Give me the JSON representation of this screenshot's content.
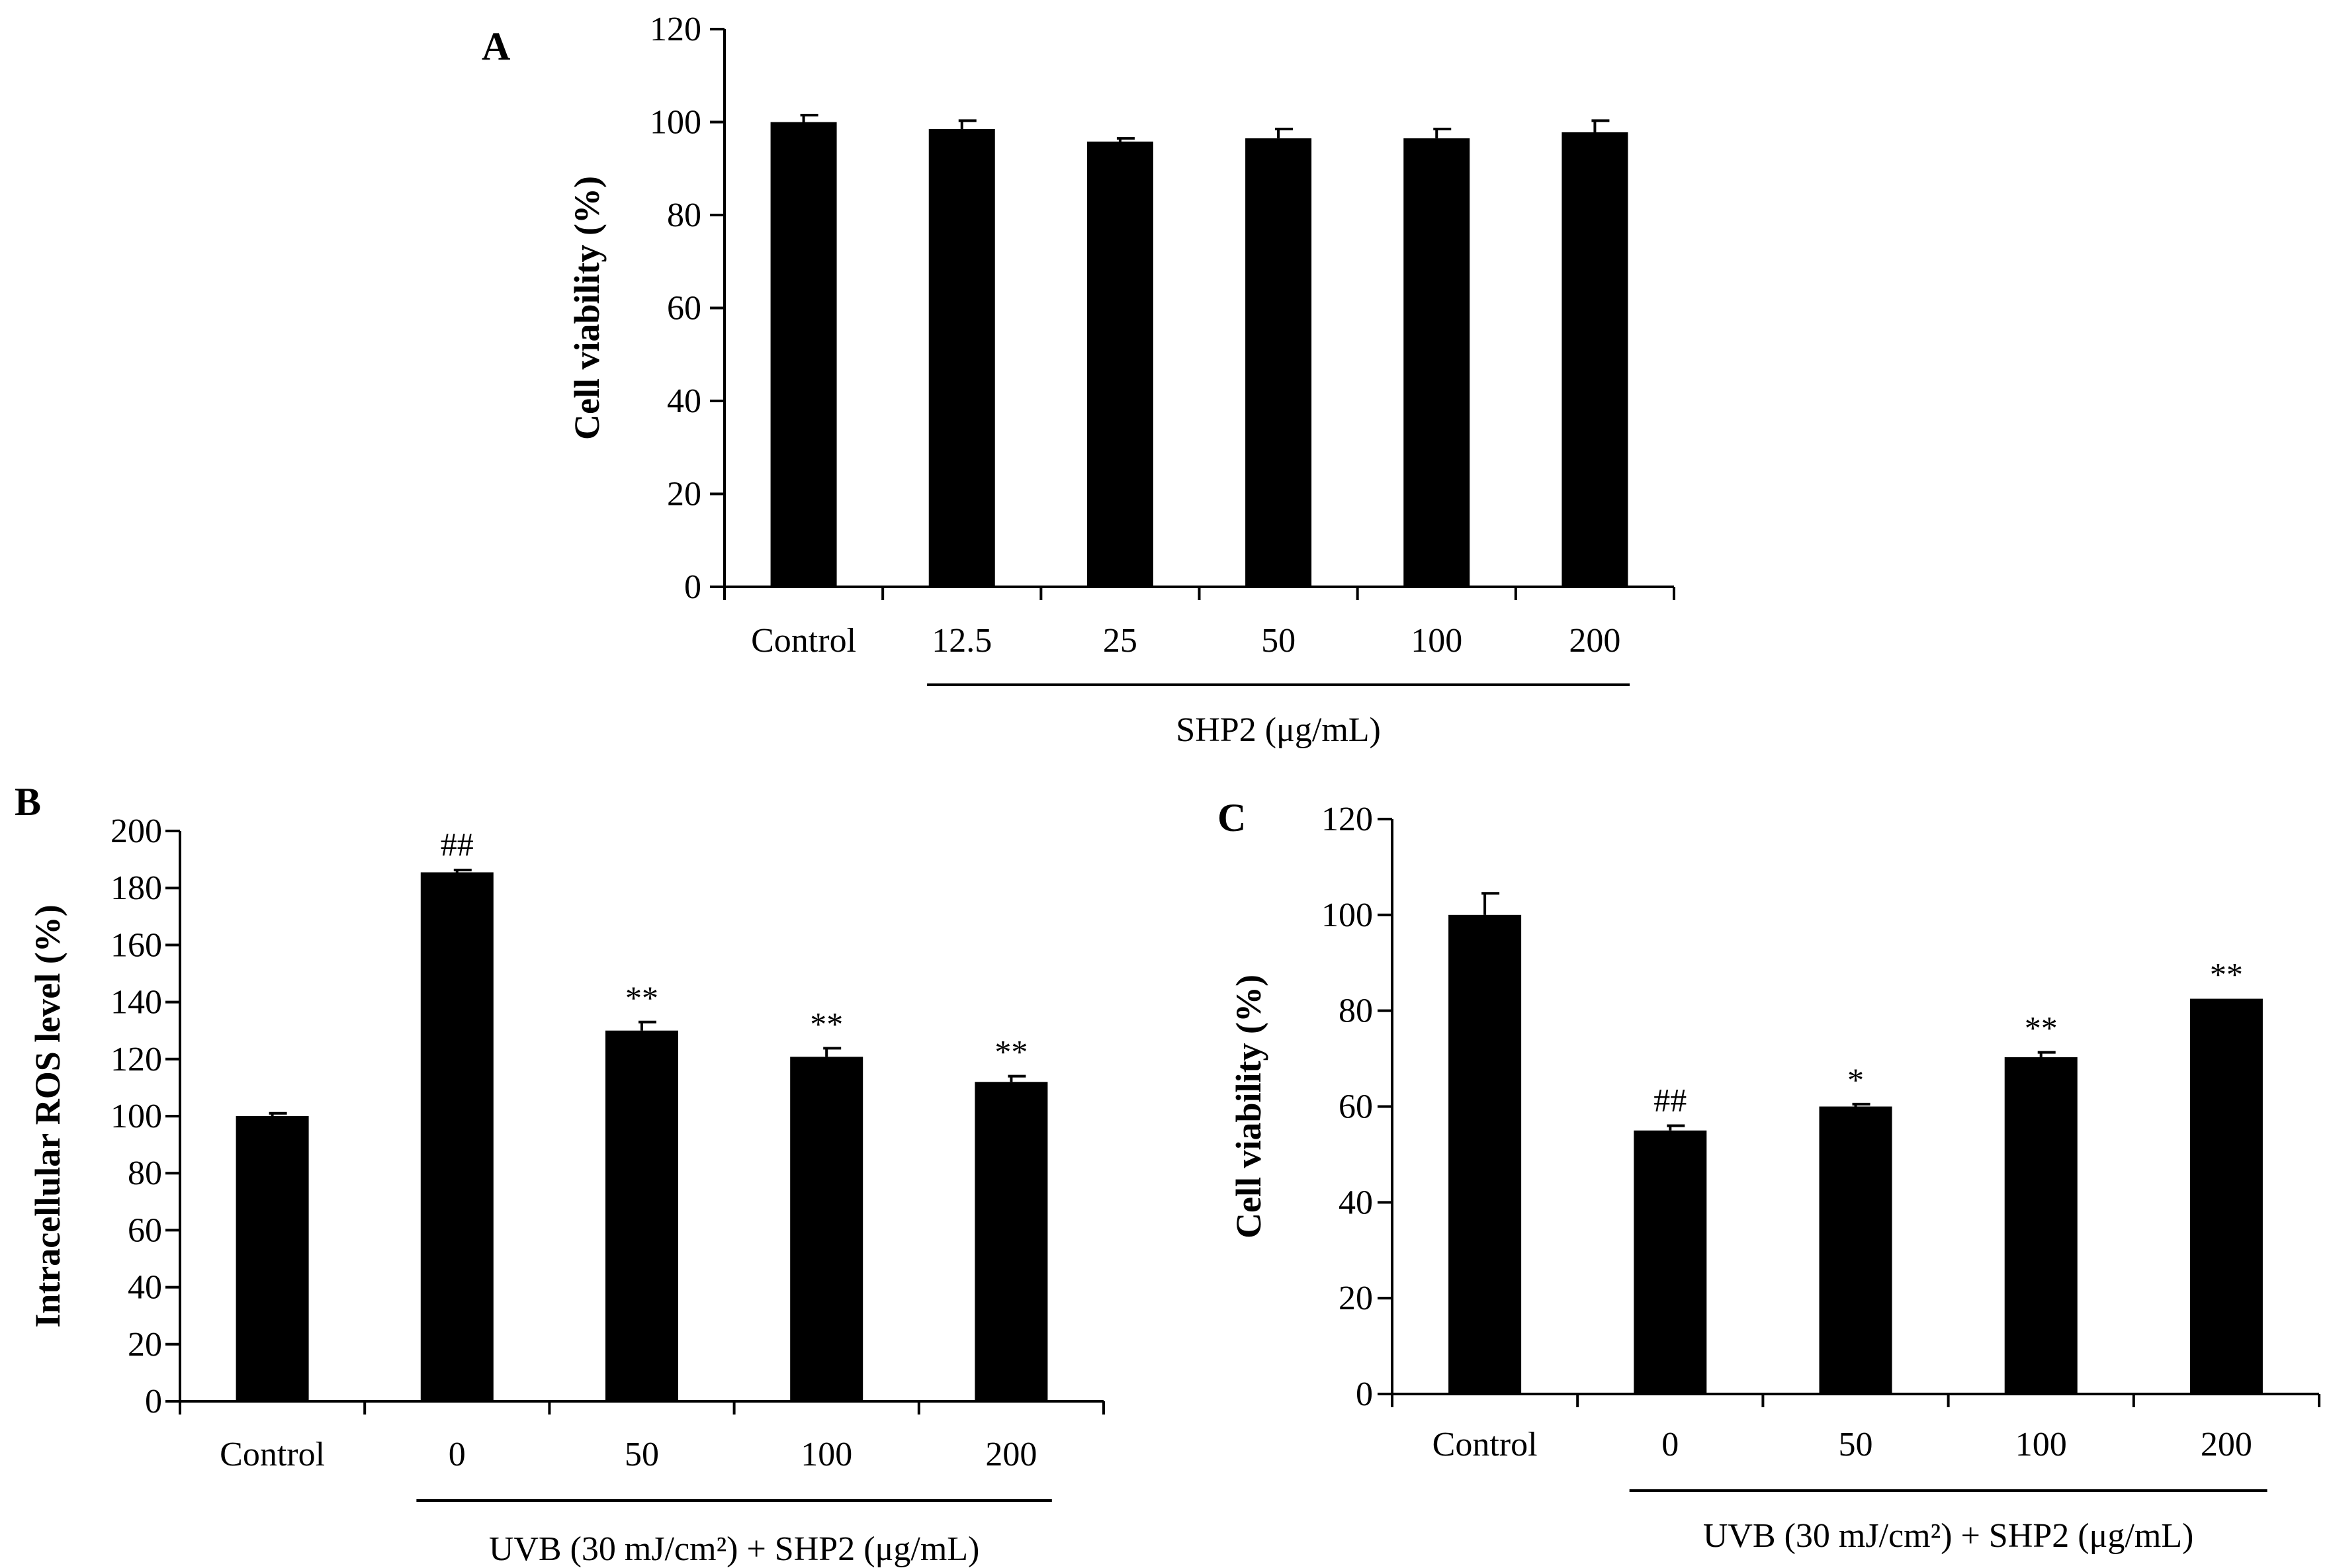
{
  "figure": {
    "background": "#ffffff",
    "bar_color": "#000000"
  },
  "chart_data": [
    {
      "id": "A",
      "type": "bar",
      "panel_label": "A",
      "ylabel": "Cell viability (%)",
      "xlabel": "",
      "group_label": "SHP2 (μg/mL)",
      "group_span": [
        1,
        5
      ],
      "categories": [
        "Control",
        "12.5",
        "25",
        "50",
        "100",
        "200"
      ],
      "values": [
        100,
        98.5,
        95.8,
        96.5,
        96.5,
        97.8
      ],
      "errors": [
        1.5,
        1.8,
        0.7,
        2.0,
        2.0,
        2.5
      ],
      "annotations": [
        "",
        "",
        "",
        "",
        "",
        ""
      ],
      "ylim": [
        0,
        120
      ],
      "yticks": [
        "0",
        "20",
        "40",
        "60",
        "80",
        "100",
        "120"
      ],
      "grid": false,
      "legend": "none"
    },
    {
      "id": "B",
      "type": "bar",
      "panel_label": "B",
      "ylabel": "Intracellular ROS level (%)",
      "xlabel": "",
      "group_label": "UVB (30 mJ/cm²) + SHP2 (μg/mL)",
      "group_span": [
        1,
        4
      ],
      "categories": [
        "Control",
        "0",
        "50",
        "100",
        "200"
      ],
      "values": [
        100,
        185.5,
        130,
        120.8,
        112
      ],
      "errors": [
        1.0,
        0.8,
        3.0,
        3.0,
        2.0
      ],
      "annotations": [
        "",
        "##",
        "**",
        "**",
        "**"
      ],
      "ylim": [
        0,
        200
      ],
      "yticks": [
        "0",
        "20",
        "40",
        "60",
        "80",
        "100",
        "120",
        "140",
        "160",
        "180",
        "200"
      ],
      "grid": false,
      "legend": "none"
    },
    {
      "id": "C",
      "type": "bar",
      "panel_label": "C",
      "ylabel": "Cell viability (%)",
      "xlabel": "",
      "group_label": "UVB (30 mJ/cm²) + SHP2 (μg/mL)",
      "group_span": [
        1,
        4
      ],
      "categories": [
        "Control",
        "0",
        "50",
        "100",
        "200"
      ],
      "values": [
        100,
        55,
        60,
        70.3,
        82.5
      ],
      "errors": [
        4.5,
        1.0,
        0.5,
        1.0,
        0.0
      ],
      "annotations": [
        "",
        "##",
        "*",
        "**",
        "**"
      ],
      "ylim": [
        0,
        120
      ],
      "yticks": [
        "0",
        "20",
        "40",
        "60",
        "80",
        "100",
        "120"
      ],
      "grid": false,
      "legend": "none"
    }
  ]
}
